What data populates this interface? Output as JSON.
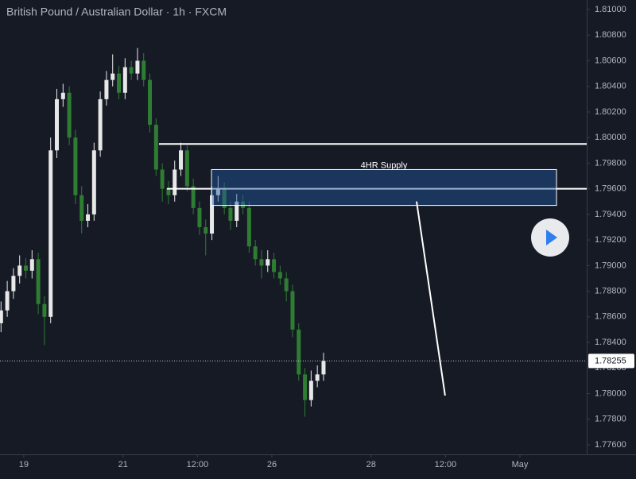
{
  "chart_data": {
    "type": "candlestick",
    "title": "British Pound / Australian Dollar · 1h · FXCM",
    "up_color": "#e8e8e8",
    "down_color": "#2e7d32",
    "xlim": [
      -11.5,
      272.3
    ],
    "xticks": [
      {
        "value": 0,
        "label": "19"
      },
      {
        "value": 48,
        "label": "21"
      },
      {
        "value": 84,
        "label": "12:00"
      },
      {
        "value": 120,
        "label": "26"
      },
      {
        "value": 168,
        "label": "28"
      },
      {
        "value": 204,
        "label": "12:00"
      },
      {
        "value": 240,
        "label": "May"
      }
    ],
    "ylim": [
      1.775255,
      1.810745
    ],
    "yticks": [
      {
        "value": 1.81,
        "label": "1.81000"
      },
      {
        "value": 1.808,
        "label": "1.80800"
      },
      {
        "value": 1.806,
        "label": "1.80600"
      },
      {
        "value": 1.804,
        "label": "1.80400"
      },
      {
        "value": 1.802,
        "label": "1.80200"
      },
      {
        "value": 1.8,
        "label": "1.80000"
      },
      {
        "value": 1.798,
        "label": "1.79800"
      },
      {
        "value": 1.796,
        "label": "1.79600"
      },
      {
        "value": 1.794,
        "label": "1.79400"
      },
      {
        "value": 1.792,
        "label": "1.79200"
      },
      {
        "value": 1.79,
        "label": "1.79000"
      },
      {
        "value": 1.788,
        "label": "1.78800"
      },
      {
        "value": 1.786,
        "label": "1.78600"
      },
      {
        "value": 1.784,
        "label": "1.78400"
      },
      {
        "value": 1.782,
        "label": "1.78200"
      },
      {
        "value": 1.78,
        "label": "1.78000"
      },
      {
        "value": 1.778,
        "label": "1.77800"
      },
      {
        "value": 1.776,
        "label": "1.77600"
      }
    ],
    "x": [
      -11,
      -8,
      -5,
      -2,
      1,
      4,
      7,
      10,
      13,
      16,
      19,
      22,
      25,
      28,
      31,
      34,
      37,
      40,
      43,
      46,
      49,
      52,
      55,
      58,
      61,
      64,
      67,
      70,
      73,
      76,
      79,
      82,
      85,
      88,
      91,
      94,
      97,
      100,
      103,
      106,
      109,
      112,
      115,
      118,
      121,
      124,
      127,
      130,
      133,
      136,
      139,
      142,
      145
    ],
    "open": [
      1.7855,
      1.7865,
      1.788,
      1.7892,
      1.79,
      1.7896,
      1.7905,
      1.787,
      1.786,
      1.799,
      1.803,
      1.8035,
      1.8,
      1.7955,
      1.7935,
      1.794,
      1.799,
      1.803,
      1.8045,
      1.805,
      1.8035,
      1.8055,
      1.805,
      1.806,
      1.8045,
      1.801,
      1.7975,
      1.796,
      1.7955,
      1.7975,
      1.799,
      1.7962,
      1.7945,
      1.793,
      1.7925,
      1.7955,
      1.796,
      1.7945,
      1.7935,
      1.795,
      1.7945,
      1.7915,
      1.7905,
      1.79,
      1.7905,
      1.7895,
      1.789,
      1.788,
      1.785,
      1.7815,
      1.7795,
      1.781,
      1.7815
    ],
    "high": [
      1.7872,
      1.7888,
      1.7898,
      1.7908,
      1.7906,
      1.7912,
      1.791,
      1.7876,
      1.8,
      1.8038,
      1.8042,
      1.804,
      1.8006,
      1.7962,
      1.7948,
      1.7996,
      1.8036,
      1.8052,
      1.8065,
      1.8056,
      1.8062,
      1.806,
      1.807,
      1.8066,
      1.805,
      1.8015,
      1.798,
      1.7966,
      1.7982,
      1.7996,
      1.7994,
      1.7968,
      1.795,
      1.7936,
      1.7962,
      1.797,
      1.7965,
      1.795,
      1.7956,
      1.7955,
      1.795,
      1.792,
      1.7912,
      1.7912,
      1.791,
      1.79,
      1.7895,
      1.7885,
      1.7855,
      1.782,
      1.7818,
      1.7822,
      1.7832
    ],
    "low": [
      1.7848,
      1.786,
      1.7874,
      1.7886,
      1.789,
      1.789,
      1.7862,
      1.7838,
      1.7855,
      1.7984,
      1.8024,
      1.7994,
      1.7948,
      1.7925,
      1.793,
      1.7935,
      1.7985,
      1.8025,
      1.804,
      1.803,
      1.803,
      1.8045,
      1.8045,
      1.804,
      1.8004,
      1.797,
      1.795,
      1.7948,
      1.795,
      1.797,
      1.7958,
      1.794,
      1.7924,
      1.7908,
      1.792,
      1.795,
      1.794,
      1.7928,
      1.793,
      1.794,
      1.791,
      1.79,
      1.789,
      1.7895,
      1.789,
      1.7885,
      1.7872,
      1.7844,
      1.781,
      1.7782,
      1.779,
      1.7805,
      1.781
    ],
    "close": [
      1.7865,
      1.788,
      1.7892,
      1.79,
      1.7896,
      1.7905,
      1.787,
      1.786,
      1.799,
      1.803,
      1.8035,
      1.8,
      1.7955,
      1.7935,
      1.794,
      1.799,
      1.803,
      1.8045,
      1.805,
      1.8035,
      1.8055,
      1.805,
      1.806,
      1.8045,
      1.801,
      1.7975,
      1.796,
      1.7955,
      1.7975,
      1.799,
      1.7962,
      1.7945,
      1.793,
      1.7925,
      1.7955,
      1.796,
      1.7945,
      1.7935,
      1.795,
      1.7945,
      1.7915,
      1.7905,
      1.79,
      1.7905,
      1.7895,
      1.789,
      1.788,
      1.785,
      1.7815,
      1.7795,
      1.781,
      1.7815,
      1.78255
    ],
    "last_price": 1.78255,
    "hlines": [
      {
        "x": 65.4,
        "y": 1.7995
      },
      {
        "x": 69.2,
        "y": 1.796
      }
    ],
    "zone": {
      "label": "4HR Supply",
      "x": [
        90.8,
        257.7
      ],
      "y": [
        1.7947,
        1.7975
      ]
    },
    "trend_line": {
      "x": [
        190,
        203.8
      ],
      "y": [
        1.79501,
        1.77985
      ]
    }
  }
}
